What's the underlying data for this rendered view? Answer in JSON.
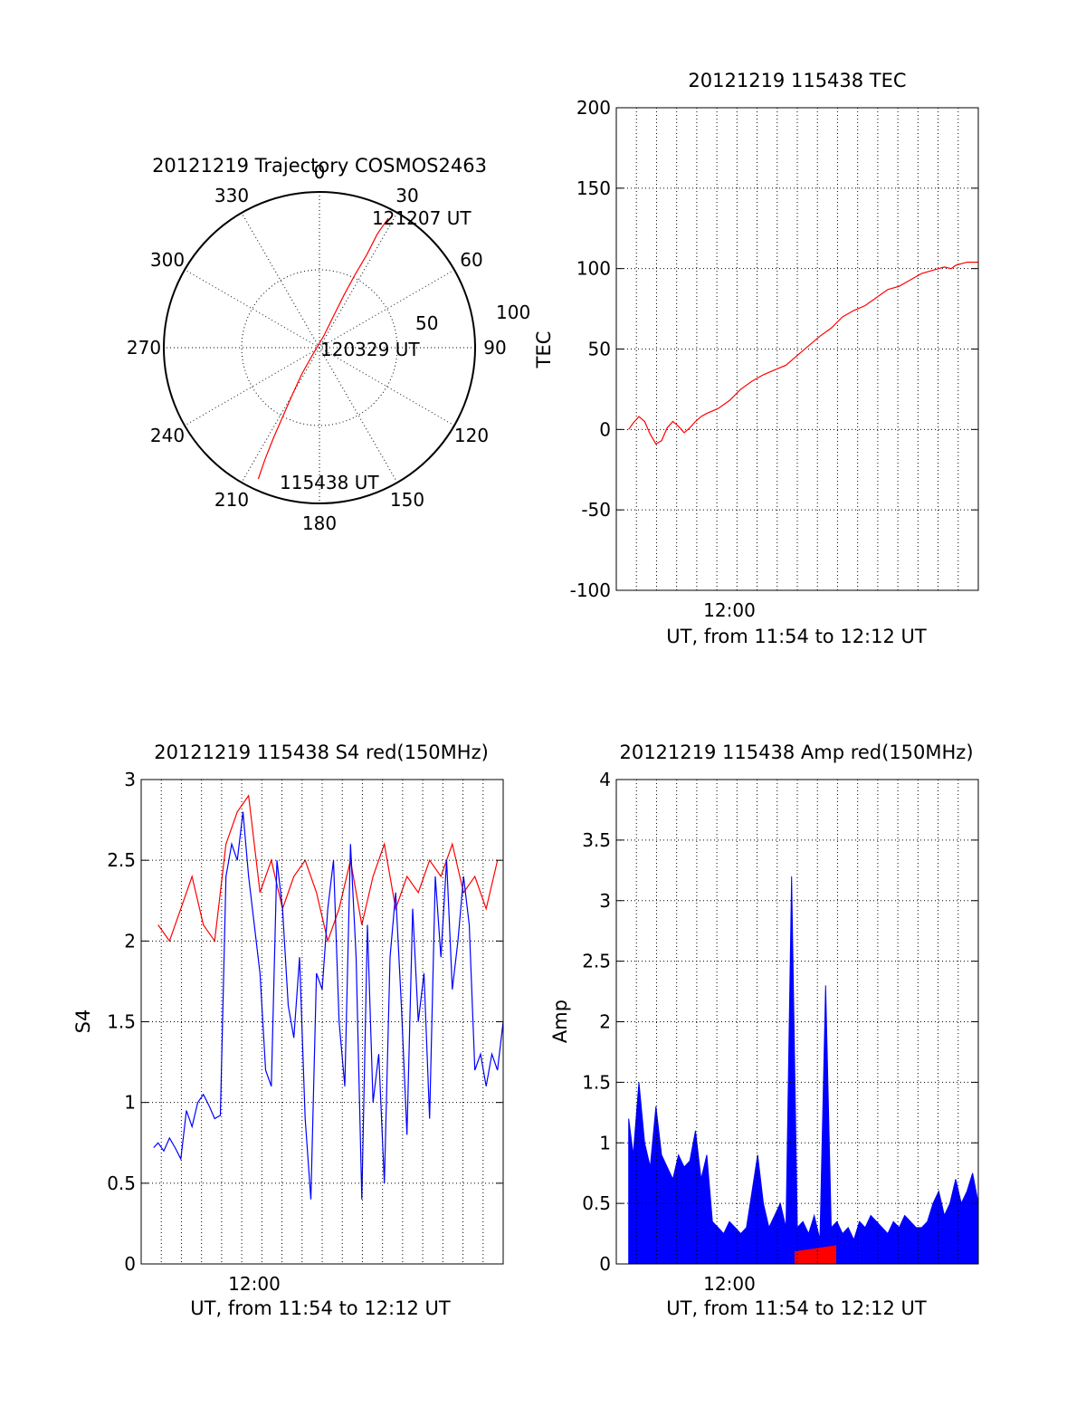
{
  "colors": {
    "red": "#ff0000",
    "blue": "#0000ff",
    "axis": "#000000"
  },
  "chart_data": [
    {
      "type": "polar",
      "title": "20121219 Trajectory COSMOS2463",
      "azimuth_labels": [
        "0",
        "30",
        "60",
        "90",
        "120",
        "150",
        "180",
        "210",
        "240",
        "270",
        "300",
        "330"
      ],
      "radial_labels": [
        "50",
        "100"
      ],
      "radial_range": [
        0,
        100
      ],
      "start_label": "115438 UT",
      "mid_label": "120329 UT",
      "end_label": "121207 UT",
      "trajectory": [
        {
          "az": 205,
          "r": 93
        },
        {
          "az": 206,
          "r": 80
        },
        {
          "az": 207,
          "r": 65
        },
        {
          "az": 208,
          "r": 50
        },
        {
          "az": 210,
          "r": 35
        },
        {
          "az": 214,
          "r": 20
        },
        {
          "az": 225,
          "r": 6
        },
        {
          "az": 20,
          "r": 8
        },
        {
          "az": 24,
          "r": 22
        },
        {
          "az": 25,
          "r": 37
        },
        {
          "az": 26,
          "r": 52
        },
        {
          "az": 27,
          "r": 67
        },
        {
          "az": 27,
          "r": 82
        },
        {
          "az": 28,
          "r": 94
        }
      ]
    },
    {
      "type": "line",
      "title": "20121219 115438 TEC",
      "xlabel": "UT, from 11:54 to 12:12 UT",
      "ylabel": "TEC",
      "xlim": [
        11.9,
        12.22
      ],
      "ylim": [
        -100,
        200
      ],
      "yticks": [
        -100,
        -50,
        0,
        50,
        100,
        150,
        200
      ],
      "xtick_label": "12:00",
      "xtick_value": 12.0,
      "x_grid_count": 17,
      "series": [
        {
          "color": "red",
          "x": [
            11.911,
            11.915,
            11.92,
            11.925,
            11.93,
            11.935,
            11.94,
            11.945,
            11.95,
            11.955,
            11.96,
            11.965,
            11.97,
            11.975,
            11.98,
            11.99,
            12.0,
            12.01,
            12.02,
            12.03,
            12.04,
            12.05,
            12.06,
            12.07,
            12.08,
            12.09,
            12.1,
            12.11,
            12.12,
            12.13,
            12.14,
            12.15,
            12.16,
            12.17,
            12.18,
            12.19,
            12.196,
            12.2,
            12.205,
            12.21,
            12.215,
            12.22
          ],
          "y": [
            0,
            4,
            8,
            5,
            -3,
            -9,
            -7,
            1,
            5,
            2,
            -2,
            1,
            5,
            8,
            10,
            13,
            18,
            25,
            30,
            34,
            37,
            40,
            46,
            52,
            58,
            63,
            70,
            74,
            77,
            82,
            87,
            89,
            93,
            97,
            99,
            101,
            100,
            102,
            103,
            104,
            104,
            104
          ]
        }
      ]
    },
    {
      "type": "line",
      "title": "20121219 115438 S4 red(150MHz)",
      "xlabel": "UT, from 11:54 to 12:12 UT",
      "ylabel": "S4",
      "xlim": [
        11.9,
        12.22
      ],
      "ylim": [
        0,
        3
      ],
      "yticks": [
        0,
        0.5,
        1,
        1.5,
        2,
        2.5,
        3
      ],
      "ytick_labels": [
        "0",
        "0.5",
        "1",
        "1.5",
        "2",
        "2.5",
        "3"
      ],
      "xtick_label": "12:00",
      "xtick_value": 12.0,
      "x_grid_count": 17,
      "series": [
        {
          "color": "red",
          "x": [
            11.915,
            11.925,
            11.935,
            11.945,
            11.955,
            11.965,
            11.975,
            11.985,
            11.995,
            12.005,
            12.015,
            12.025,
            12.035,
            12.045,
            12.055,
            12.065,
            12.075,
            12.085,
            12.095,
            12.105,
            12.115,
            12.125,
            12.135,
            12.145,
            12.155,
            12.165,
            12.175,
            12.185,
            12.195,
            12.205,
            12.215
          ],
          "y": [
            2.1,
            2.0,
            2.2,
            2.4,
            2.1,
            2.0,
            2.6,
            2.8,
            2.9,
            2.3,
            2.5,
            2.2,
            2.4,
            2.5,
            2.3,
            2.0,
            2.2,
            2.5,
            2.1,
            2.4,
            2.6,
            2.2,
            2.4,
            2.3,
            2.5,
            2.4,
            2.6,
            2.3,
            2.4,
            2.2,
            2.5
          ]
        },
        {
          "color": "blue",
          "x": [
            11.911,
            11.915,
            11.92,
            11.925,
            11.93,
            11.935,
            11.94,
            11.945,
            11.95,
            11.955,
            11.96,
            11.965,
            11.97,
            11.975,
            11.98,
            11.985,
            11.99,
            11.995,
            12.0,
            12.005,
            12.01,
            12.015,
            12.02,
            12.025,
            12.03,
            12.035,
            12.04,
            12.045,
            12.05,
            12.055,
            12.06,
            12.065,
            12.07,
            12.075,
            12.08,
            12.085,
            12.09,
            12.095,
            12.1,
            12.105,
            12.11,
            12.115,
            12.12,
            12.125,
            12.13,
            12.135,
            12.14,
            12.145,
            12.15,
            12.155,
            12.16,
            12.165,
            12.17,
            12.175,
            12.18,
            12.185,
            12.19,
            12.195,
            12.2,
            12.205,
            12.21,
            12.215,
            12.22
          ],
          "y": [
            0.72,
            0.75,
            0.7,
            0.78,
            0.72,
            0.65,
            0.95,
            0.85,
            1.0,
            1.05,
            0.98,
            0.9,
            0.92,
            2.4,
            2.6,
            2.5,
            2.8,
            2.4,
            2.1,
            1.8,
            1.2,
            1.1,
            2.5,
            2.2,
            1.6,
            1.4,
            1.9,
            0.9,
            0.4,
            1.8,
            1.7,
            2.2,
            2.5,
            1.5,
            1.1,
            2.6,
            1.9,
            0.4,
            2.1,
            1.0,
            1.3,
            0.5,
            1.9,
            2.3,
            1.6,
            0.8,
            2.2,
            1.5,
            1.8,
            0.9,
            2.4,
            1.9,
            2.5,
            1.7,
            2.0,
            2.4,
            2.1,
            1.2,
            1.3,
            1.1,
            1.3,
            1.2,
            1.5
          ]
        }
      ]
    },
    {
      "type": "line",
      "title": "20121219 115438 Amp red(150MHz)",
      "xlabel": "UT, from 11:54 to 12:12 UT",
      "ylabel": "Amp",
      "xlim": [
        11.9,
        12.22
      ],
      "ylim": [
        0,
        4
      ],
      "yticks": [
        0,
        0.5,
        1,
        1.5,
        2,
        2.5,
        3,
        3.5,
        4
      ],
      "ytick_labels": [
        "0",
        "0.5",
        "1",
        "1.5",
        "2",
        "2.5",
        "3",
        "3.5",
        "4"
      ],
      "xtick_label": "12:00",
      "xtick_value": 12.0,
      "x_grid_count": 17,
      "series": [
        {
          "color": "blue",
          "x": [
            11.911,
            11.915,
            11.92,
            11.925,
            11.93,
            11.935,
            11.94,
            11.945,
            11.95,
            11.955,
            11.96,
            11.965,
            11.97,
            11.975,
            11.98,
            11.985,
            11.99,
            11.995,
            12.0,
            12.005,
            12.01,
            12.015,
            12.02,
            12.025,
            12.03,
            12.035,
            12.04,
            12.045,
            12.05,
            12.055,
            12.06,
            12.065,
            12.07,
            12.075,
            12.08,
            12.085,
            12.09,
            12.095,
            12.1,
            12.105,
            12.11,
            12.115,
            12.12,
            12.125,
            12.13,
            12.135,
            12.14,
            12.145,
            12.15,
            12.155,
            12.16,
            12.165,
            12.17,
            12.175,
            12.18,
            12.185,
            12.19,
            12.195,
            12.2,
            12.205,
            12.21,
            12.215,
            12.22
          ],
          "y": [
            1.2,
            0.9,
            1.5,
            1.0,
            0.8,
            1.3,
            0.9,
            0.8,
            0.7,
            0.9,
            0.8,
            0.85,
            1.1,
            0.7,
            0.9,
            0.35,
            0.3,
            0.25,
            0.35,
            0.3,
            0.25,
            0.3,
            0.6,
            0.9,
            0.5,
            0.3,
            0.4,
            0.5,
            0.3,
            3.2,
            0.3,
            0.35,
            0.25,
            0.4,
            0.2,
            2.3,
            0.3,
            0.35,
            0.25,
            0.3,
            0.2,
            0.35,
            0.3,
            0.4,
            0.35,
            0.3,
            0.25,
            0.35,
            0.3,
            0.4,
            0.35,
            0.3,
            0.3,
            0.35,
            0.5,
            0.6,
            0.4,
            0.5,
            0.7,
            0.5,
            0.6,
            0.75,
            0.5
          ]
        },
        {
          "color": "red",
          "x": [
            12.058,
            12.094
          ],
          "y": [
            0.1,
            0.15
          ]
        }
      ]
    }
  ]
}
